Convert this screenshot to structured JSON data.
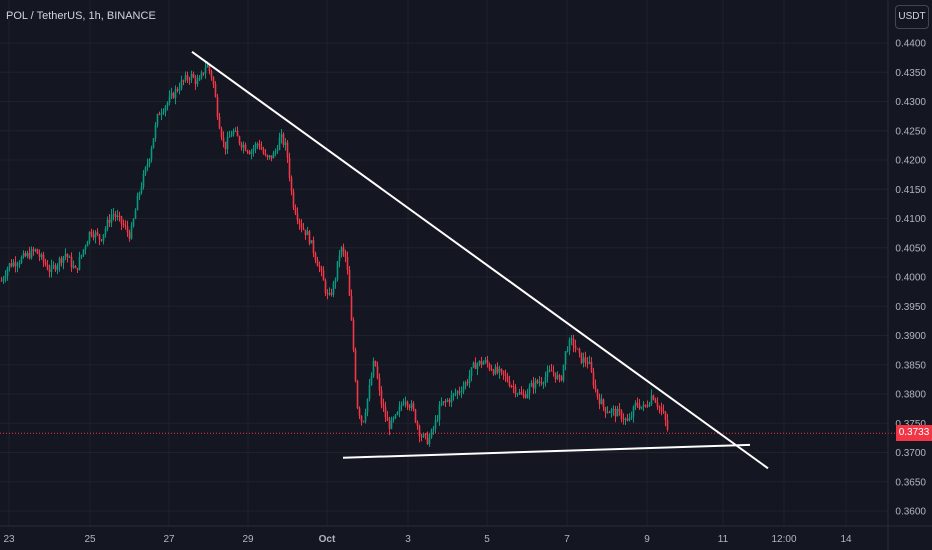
{
  "header": {
    "title": "POL / TetherUS, 1h, BINANCE",
    "unit_label": "USDT"
  },
  "colors": {
    "background": "#141721",
    "up": "#089981",
    "down": "#f23645",
    "grid": "#1e222d",
    "trendline": "#ffffff"
  },
  "chart_data": {
    "type": "candlestick",
    "title": "POL / TetherUS, 1h, BINANCE",
    "ylim": [
      0.3595,
      0.4405
    ],
    "y_ticks": [
      "0.4400",
      "0.4350",
      "0.4300",
      "0.4250",
      "0.4200",
      "0.4150",
      "0.4100",
      "0.4050",
      "0.4000",
      "0.3950",
      "0.3900",
      "0.3850",
      "0.3800",
      "0.3750",
      "0.3700",
      "0.3650",
      "0.3600"
    ],
    "x_ticks": [
      "23",
      "25",
      "27",
      "29",
      "Oct",
      "3",
      "5",
      "7",
      "9",
      "11",
      "12:00",
      "14"
    ],
    "last_price": "0.3733",
    "price_path": [
      [
        0,
        0.399
      ],
      [
        8,
        0.402
      ],
      [
        20,
        0.403
      ],
      [
        35,
        0.4045
      ],
      [
        50,
        0.401
      ],
      [
        65,
        0.404
      ],
      [
        75,
        0.401
      ],
      [
        90,
        0.408
      ],
      [
        100,
        0.4065
      ],
      [
        112,
        0.411
      ],
      [
        122,
        0.409
      ],
      [
        130,
        0.407
      ],
      [
        138,
        0.414
      ],
      [
        148,
        0.42
      ],
      [
        158,
        0.428
      ],
      [
        168,
        0.43
      ],
      [
        180,
        0.433
      ],
      [
        190,
        0.4345
      ],
      [
        198,
        0.433
      ],
      [
        206,
        0.4365
      ],
      [
        212,
        0.434
      ],
      [
        218,
        0.427
      ],
      [
        224,
        0.422
      ],
      [
        232,
        0.425
      ],
      [
        240,
        0.423
      ],
      [
        250,
        0.4215
      ],
      [
        258,
        0.423
      ],
      [
        266,
        0.42
      ],
      [
        274,
        0.421
      ],
      [
        280,
        0.424
      ],
      [
        286,
        0.422
      ],
      [
        292,
        0.413
      ],
      [
        300,
        0.409
      ],
      [
        308,
        0.407
      ],
      [
        314,
        0.404
      ],
      [
        320,
        0.401
      ],
      [
        328,
        0.396
      ],
      [
        334,
        0.399
      ],
      [
        340,
        0.405
      ],
      [
        346,
        0.403
      ],
      [
        352,
        0.39
      ],
      [
        357,
        0.378
      ],
      [
        362,
        0.375
      ],
      [
        368,
        0.38
      ],
      [
        374,
        0.386
      ],
      [
        380,
        0.379
      ],
      [
        388,
        0.3745
      ],
      [
        396,
        0.376
      ],
      [
        404,
        0.3795
      ],
      [
        412,
        0.3775
      ],
      [
        420,
        0.373
      ],
      [
        428,
        0.372
      ],
      [
        434,
        0.3745
      ],
      [
        440,
        0.378
      ],
      [
        448,
        0.379
      ],
      [
        458,
        0.3805
      ],
      [
        466,
        0.382
      ],
      [
        474,
        0.385
      ],
      [
        484,
        0.3855
      ],
      [
        494,
        0.384
      ],
      [
        504,
        0.383
      ],
      [
        514,
        0.381
      ],
      [
        522,
        0.3795
      ],
      [
        532,
        0.3815
      ],
      [
        542,
        0.3825
      ],
      [
        552,
        0.384
      ],
      [
        560,
        0.382
      ],
      [
        566,
        0.388
      ],
      [
        572,
        0.389
      ],
      [
        580,
        0.386
      ],
      [
        588,
        0.3855
      ],
      [
        596,
        0.38
      ],
      [
        604,
        0.3775
      ],
      [
        612,
        0.377
      ],
      [
        620,
        0.3765
      ],
      [
        628,
        0.375
      ],
      [
        636,
        0.3785
      ],
      [
        644,
        0.3775
      ],
      [
        652,
        0.38
      ],
      [
        658,
        0.378
      ],
      [
        664,
        0.376
      ],
      [
        668,
        0.3733
      ]
    ],
    "trendlines": [
      {
        "name": "descending-resistance",
        "from": {
          "t": 0,
          "price": 0.4385
        },
        "to": {
          "t": 1,
          "price": 0.3673
        }
      },
      {
        "name": "horizontal-support",
        "from": {
          "t": 0,
          "price": 0.3691
        },
        "to": {
          "t": 1,
          "price": 0.3713
        }
      }
    ]
  }
}
